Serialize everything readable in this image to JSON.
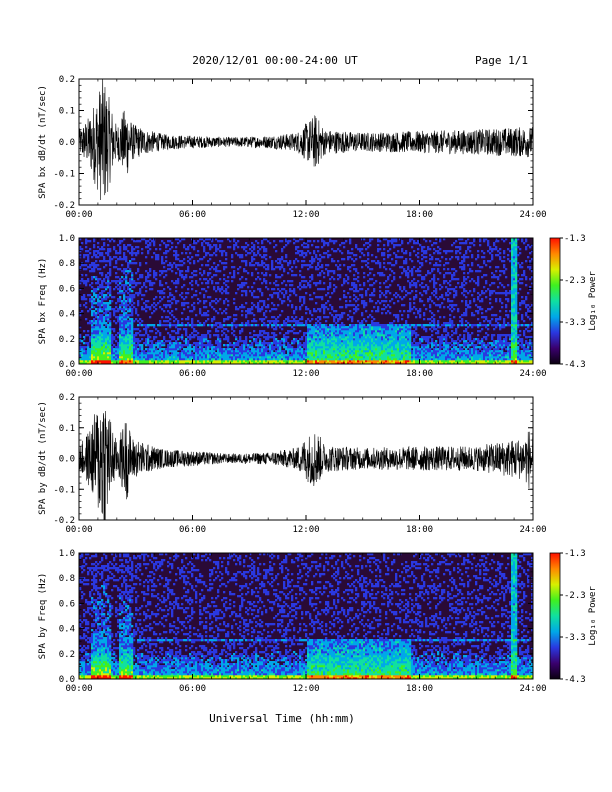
{
  "header": {
    "title": "2020/12/01  00:00-24:00 UT",
    "page": "Page 1/1"
  },
  "colors": {
    "ink": "#000000",
    "spec_background": "#2a0a36",
    "colorbar": [
      "#0a0010",
      "#3a006e",
      "#2a38e0",
      "#00a8e8",
      "#10e0a0",
      "#40f020",
      "#d8f000",
      "#ff8800",
      "#ff1000"
    ]
  },
  "chart_data": [
    {
      "type": "line",
      "id": "bx-time",
      "ylabel": "SPA bx dB/dt (nT/sec)",
      "xlabel": "",
      "xlim": [
        0,
        24
      ],
      "ylim": [
        -0.2,
        0.2
      ],
      "x_ticks": [
        "00:00",
        "06:00",
        "12:00",
        "18:00",
        "24:00"
      ],
      "y_ticks": [
        "0.2",
        "0.1",
        "0.0",
        "-0.1",
        "-0.2"
      ],
      "y_tick_values": [
        0.2,
        0.1,
        0.0,
        -0.1,
        -0.2
      ],
      "envelope": [
        [
          0,
          0.04
        ],
        [
          0.5,
          0.08
        ],
        [
          1.0,
          0.16
        ],
        [
          1.3,
          0.22
        ],
        [
          1.6,
          0.14
        ],
        [
          2.0,
          0.05
        ],
        [
          2.5,
          0.12
        ],
        [
          2.8,
          0.06
        ],
        [
          3.5,
          0.04
        ],
        [
          4.5,
          0.025
        ],
        [
          6,
          0.02
        ],
        [
          8,
          0.015
        ],
        [
          10,
          0.02
        ],
        [
          11.5,
          0.03
        ],
        [
          12.0,
          0.06
        ],
        [
          12.5,
          0.09
        ],
        [
          13,
          0.04
        ],
        [
          15,
          0.03
        ],
        [
          18,
          0.035
        ],
        [
          21,
          0.04
        ],
        [
          24,
          0.05
        ]
      ]
    },
    {
      "type": "heatmap",
      "id": "bx-freq",
      "ylabel": "SPA bx Freq (Hz)",
      "xlabel": "",
      "xlim": [
        0,
        24
      ],
      "ylim": [
        0.0,
        1.0
      ],
      "x_ticks": [
        "00:00",
        "06:00",
        "12:00",
        "18:00",
        "24:00"
      ],
      "y_ticks": [
        "1.0",
        "0.8",
        "0.6",
        "0.4",
        "0.2",
        "0.0"
      ],
      "y_tick_values": [
        1.0,
        0.8,
        0.6,
        0.4,
        0.2,
        0.0
      ],
      "colorbar_label": "Log₁₀ Power",
      "colorbar_ticks": [
        "-1.3",
        "-2.3",
        "-3.3",
        "-4.3"
      ],
      "colorbar_range": [
        -4.3,
        -1.3
      ]
    },
    {
      "type": "line",
      "id": "by-time",
      "ylabel": "SPA by dB/dt (nT/sec)",
      "xlabel": "",
      "xlim": [
        0,
        24
      ],
      "ylim": [
        -0.2,
        0.2
      ],
      "x_ticks": [
        "00:00",
        "06:00",
        "12:00",
        "18:00",
        "24:00"
      ],
      "y_ticks": [
        "0.2",
        "0.1",
        "0.0",
        "-0.1",
        "-0.2"
      ],
      "y_tick_values": [
        0.2,
        0.1,
        0.0,
        -0.1,
        -0.2
      ],
      "envelope": [
        [
          0,
          0.04
        ],
        [
          0.5,
          0.09
        ],
        [
          1.0,
          0.18
        ],
        [
          1.3,
          0.25
        ],
        [
          1.6,
          0.15
        ],
        [
          2.0,
          0.05
        ],
        [
          2.5,
          0.14
        ],
        [
          2.8,
          0.07
        ],
        [
          3.5,
          0.05
        ],
        [
          4.5,
          0.03
        ],
        [
          6,
          0.025
        ],
        [
          8,
          0.015
        ],
        [
          10,
          0.02
        ],
        [
          11.5,
          0.035
        ],
        [
          12.0,
          0.07
        ],
        [
          12.5,
          0.1
        ],
        [
          13,
          0.045
        ],
        [
          15,
          0.035
        ],
        [
          18,
          0.04
        ],
        [
          21,
          0.04
        ],
        [
          23.5,
          0.07
        ],
        [
          24,
          0.12
        ]
      ]
    },
    {
      "type": "heatmap",
      "id": "by-freq",
      "ylabel": "SPA by Freq (Hz)",
      "xlabel": "Universal Time (hh:mm)",
      "xlim": [
        0,
        24
      ],
      "ylim": [
        0.0,
        1.0
      ],
      "x_ticks": [
        "00:00",
        "06:00",
        "12:00",
        "18:00",
        "24:00"
      ],
      "y_ticks": [
        "1.0",
        "0.8",
        "0.6",
        "0.4",
        "0.2",
        "0.0"
      ],
      "y_tick_values": [
        1.0,
        0.8,
        0.6,
        0.4,
        0.2,
        0.0
      ],
      "colorbar_label": "Log₁₀ Power",
      "colorbar_ticks": [
        "-1.3",
        "-2.3",
        "-3.3",
        "-4.3"
      ],
      "colorbar_range": [
        -4.3,
        -1.3
      ]
    }
  ]
}
